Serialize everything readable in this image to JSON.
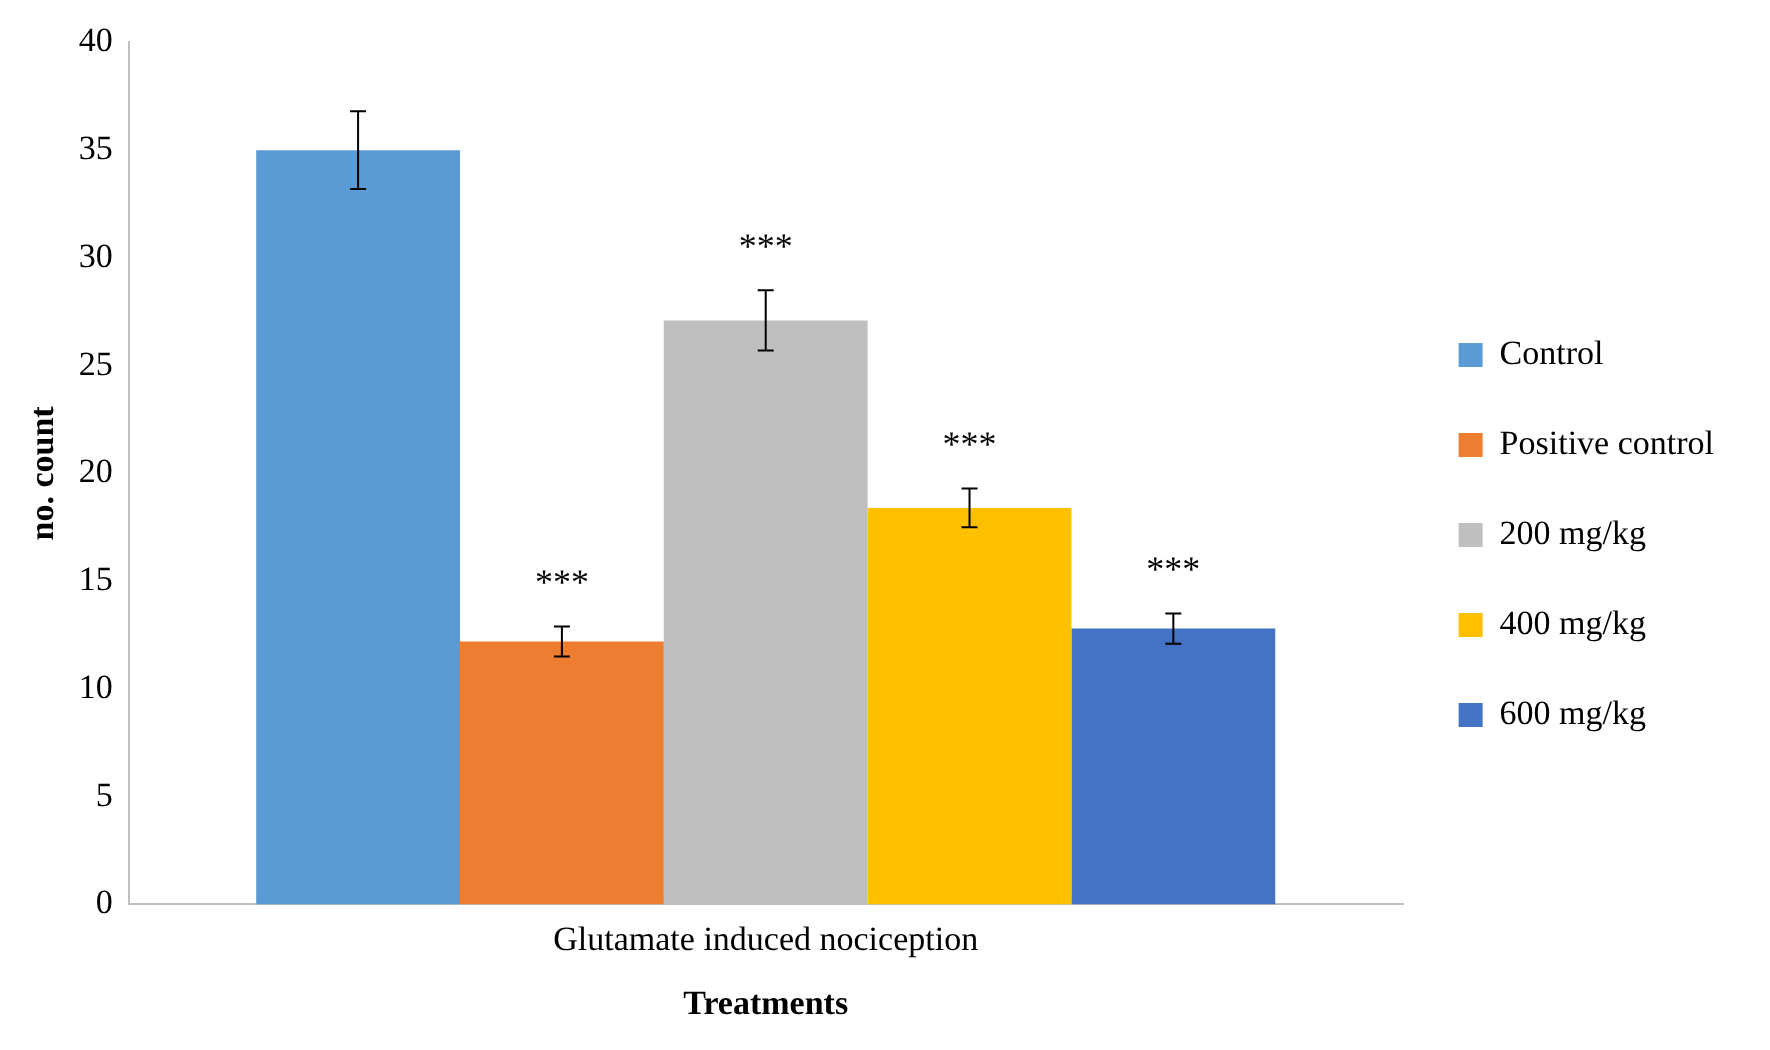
{
  "chart_data": {
    "type": "bar",
    "categories": [
      "Glutamate induced nociception"
    ],
    "xlabel": "Treatments",
    "ylabel": "no. count",
    "series": [
      {
        "name": "Control",
        "color": "#5b9bd5",
        "values": [
          35
        ],
        "errors": [
          1.8
        ],
        "value_labels": [
          null
        ]
      },
      {
        "name": "Positive control",
        "color": "#ed7d31",
        "values": [
          12.2
        ],
        "errors": [
          0.7
        ],
        "value_labels": [
          "***"
        ]
      },
      {
        "name": "200 mg/kg",
        "color": "#bfbfbf",
        "values": [
          27.1
        ],
        "errors": [
          1.4
        ],
        "value_labels": [
          "***"
        ]
      },
      {
        "name": "400 mg/kg",
        "color": "#ffc000",
        "values": [
          18.4
        ],
        "errors": [
          0.9
        ],
        "value_labels": [
          "***"
        ]
      },
      {
        "name": "600 mg/kg",
        "color": "#4472c4",
        "values": [
          12.8
        ],
        "errors": [
          0.7
        ],
        "value_labels": [
          "***"
        ]
      }
    ],
    "ylim": [
      0,
      40
    ],
    "yticks": [
      0,
      5,
      10,
      15,
      20,
      25,
      30,
      35,
      40
    ],
    "grid": false,
    "legend": "right"
  }
}
